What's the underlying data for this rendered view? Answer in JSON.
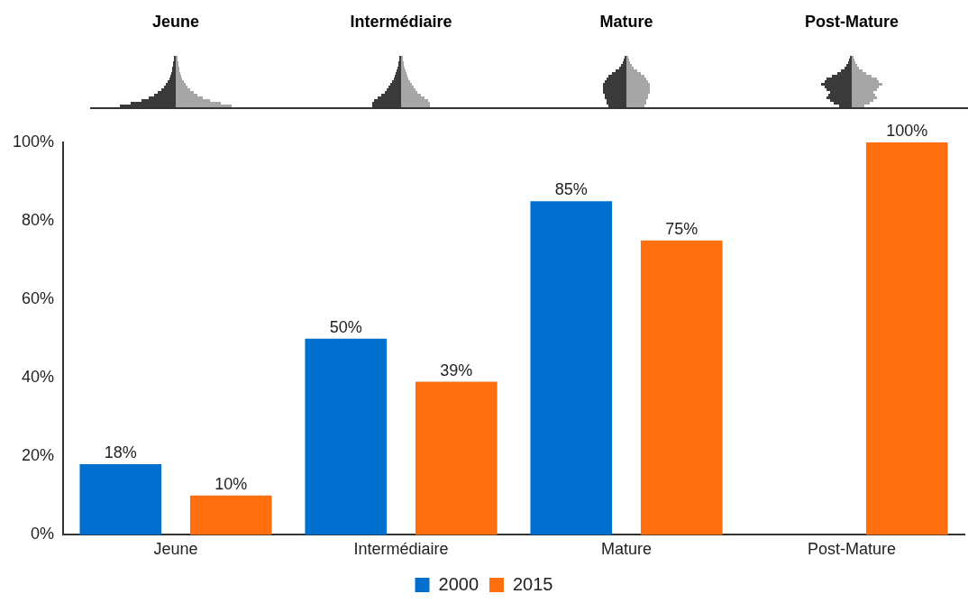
{
  "chart_data": {
    "type": "bar",
    "annotations": [
      "Jeune",
      "Intermédiaire",
      "Mature",
      "Post-Mature"
    ],
    "categories": [
      "Jeune",
      "Intermédiaire",
      "Mature",
      "Post-Mature"
    ],
    "series": [
      {
        "name": "2000",
        "color": "#0070d0",
        "values": [
          18,
          50,
          85,
          0
        ],
        "value_labels": [
          "18%",
          "50%",
          "85%",
          null
        ]
      },
      {
        "name": "2015",
        "color": "#ff6f0f",
        "values": [
          10,
          39,
          75,
          100
        ],
        "value_labels": [
          "10%",
          "39%",
          "75%",
          "100%"
        ]
      }
    ],
    "ylim": [
      0,
      100
    ],
    "yticks": [
      {
        "value": 0,
        "label": "0%"
      },
      {
        "value": 20,
        "label": "20%"
      },
      {
        "value": 40,
        "label": "40%"
      },
      {
        "value": 60,
        "label": "60%"
      },
      {
        "value": 80,
        "label": "80%"
      },
      {
        "value": 100,
        "label": "100%"
      }
    ],
    "grid": false,
    "legend": "bottom"
  }
}
